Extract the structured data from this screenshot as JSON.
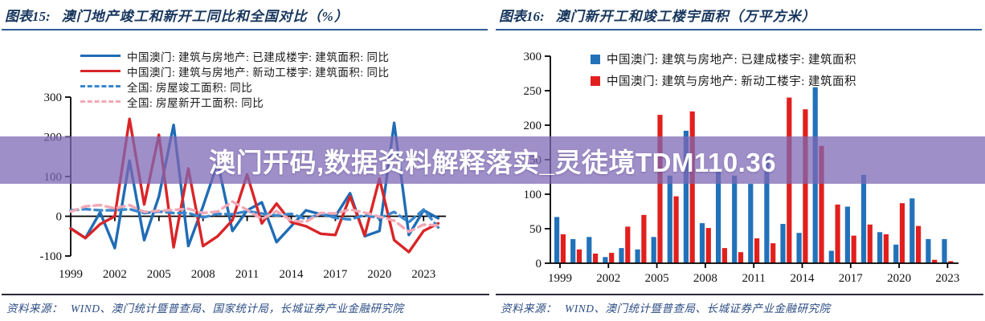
{
  "banner": {
    "text": "澳门开码,数据资料解释落实_灵徒境TDM110.36",
    "bg_color": "#7E68B5",
    "text_color": "#FFFFFF"
  },
  "colors": {
    "macau_completed_blue": "#1f6cb5",
    "macau_newstart_red": "#d92528",
    "national_completed_blue_dashed": "#3a87ce",
    "national_newstart_pink_dashed": "#f2a8b5",
    "bar_blue": "#2272b9",
    "bar_red": "#e1201e",
    "title_navy": "#17365d"
  },
  "chart_data": [
    {
      "type": "line",
      "figure_label": "图表15:",
      "title": "澳门地产竣工和新开工同比和全国对比（%）",
      "source_label": "资料来源：",
      "source": "WIND、澳门统计暨普查局、国家统计局，长城证券产业金融研究院",
      "years": [
        1999,
        2000,
        2001,
        2002,
        2003,
        2004,
        2005,
        2006,
        2007,
        2008,
        2009,
        2010,
        2011,
        2012,
        2013,
        2014,
        2015,
        2016,
        2017,
        2018,
        2019,
        2020,
        2021,
        2022,
        2023,
        2024
      ],
      "xticks": [
        1999,
        2002,
        2005,
        2008,
        2011,
        2014,
        2017,
        2020,
        2023
      ],
      "yticks": [
        300,
        200,
        100,
        0,
        -100
      ],
      "ylim": [
        -100,
        300
      ],
      "grid": false,
      "legend_position": "top-left",
      "series": [
        {
          "name": "中国澳门: 建筑与房地产: 已建成楼宇: 建筑面积: 同比",
          "color": "#1f6cb5",
          "dash": false,
          "values": [
            -30,
            -55,
            10,
            -80,
            140,
            -60,
            50,
            230,
            -75,
            25,
            135,
            -37,
            15,
            35,
            -65,
            -25,
            15,
            5,
            0,
            58,
            -50,
            -37,
            235,
            -47,
            15,
            -5
          ]
        },
        {
          "name": "中国澳门: 建筑与房地产: 新动工楼宇: 建筑面积: 同比",
          "color": "#d92528",
          "dash": false,
          "values": [
            -31,
            -55,
            -20,
            0,
            245,
            30,
            205,
            -78,
            120,
            -75,
            -50,
            -10,
            105,
            -18,
            32,
            -15,
            -25,
            -44,
            -47,
            50,
            -48,
            95,
            -60,
            -90,
            -37,
            -18
          ]
        },
        {
          "name": "全国: 房屋竣工面积: 同比",
          "color": "#3a87ce",
          "dash": true,
          "values": [
            15,
            18,
            15,
            15,
            18,
            8,
            12,
            8,
            8,
            -3,
            6,
            5,
            13,
            7,
            2,
            6,
            -7,
            6,
            -4,
            -8,
            3,
            -5,
            11,
            -15,
            17,
            -28
          ]
        },
        {
          "name": "全国: 房屋新开工面积: 同比",
          "color": "#f2a8b5",
          "dash": true,
          "values": [
            12,
            25,
            28,
            20,
            28,
            11,
            14,
            16,
            19,
            8,
            12,
            37,
            16,
            -7,
            13,
            -11,
            -14,
            8,
            7,
            17,
            9,
            -1,
            -11,
            -39,
            -21,
            -23
          ]
        }
      ]
    },
    {
      "type": "bar",
      "figure_label": "图表16:",
      "title": "澳门新开工和竣工楼宇面积（万平方米）",
      "source_label": "资料来源：",
      "source": "WIND、澳门统计暨普查局、长城证券产业金融研究院",
      "years": [
        1999,
        2000,
        2001,
        2002,
        2003,
        2004,
        2005,
        2006,
        2007,
        2008,
        2009,
        2010,
        2011,
        2012,
        2013,
        2014,
        2015,
        2016,
        2017,
        2018,
        2019,
        2020,
        2021,
        2022,
        2023
      ],
      "xticks": [
        1999,
        2002,
        2005,
        2008,
        2011,
        2014,
        2017,
        2020,
        2023
      ],
      "yticks": [
        0,
        50,
        100,
        150,
        200,
        250,
        300
      ],
      "ylim": [
        0,
        300
      ],
      "grid": false,
      "legend_position": "top",
      "series": [
        {
          "name": "中国澳门: 建筑与房地产: 已建成楼宇: 建筑面积",
          "color": "#2272b9",
          "values": [
            67,
            35,
            38,
            9,
            22,
            20,
            38,
            127,
            192,
            58,
            136,
            127,
            115,
            157,
            57,
            44,
            255,
            18,
            82,
            128,
            45,
            27,
            94,
            35,
            35
          ]
        },
        {
          "name": "中国澳门: 建筑与房地产: 新动工楼宇: 建筑面积",
          "color": "#e1201e",
          "values": [
            42,
            20,
            14,
            15,
            53,
            70,
            215,
            97,
            220,
            51,
            22,
            16,
            36,
            29,
            240,
            223,
            170,
            85,
            40,
            56,
            42,
            87,
            54,
            5,
            3
          ]
        }
      ]
    }
  ]
}
